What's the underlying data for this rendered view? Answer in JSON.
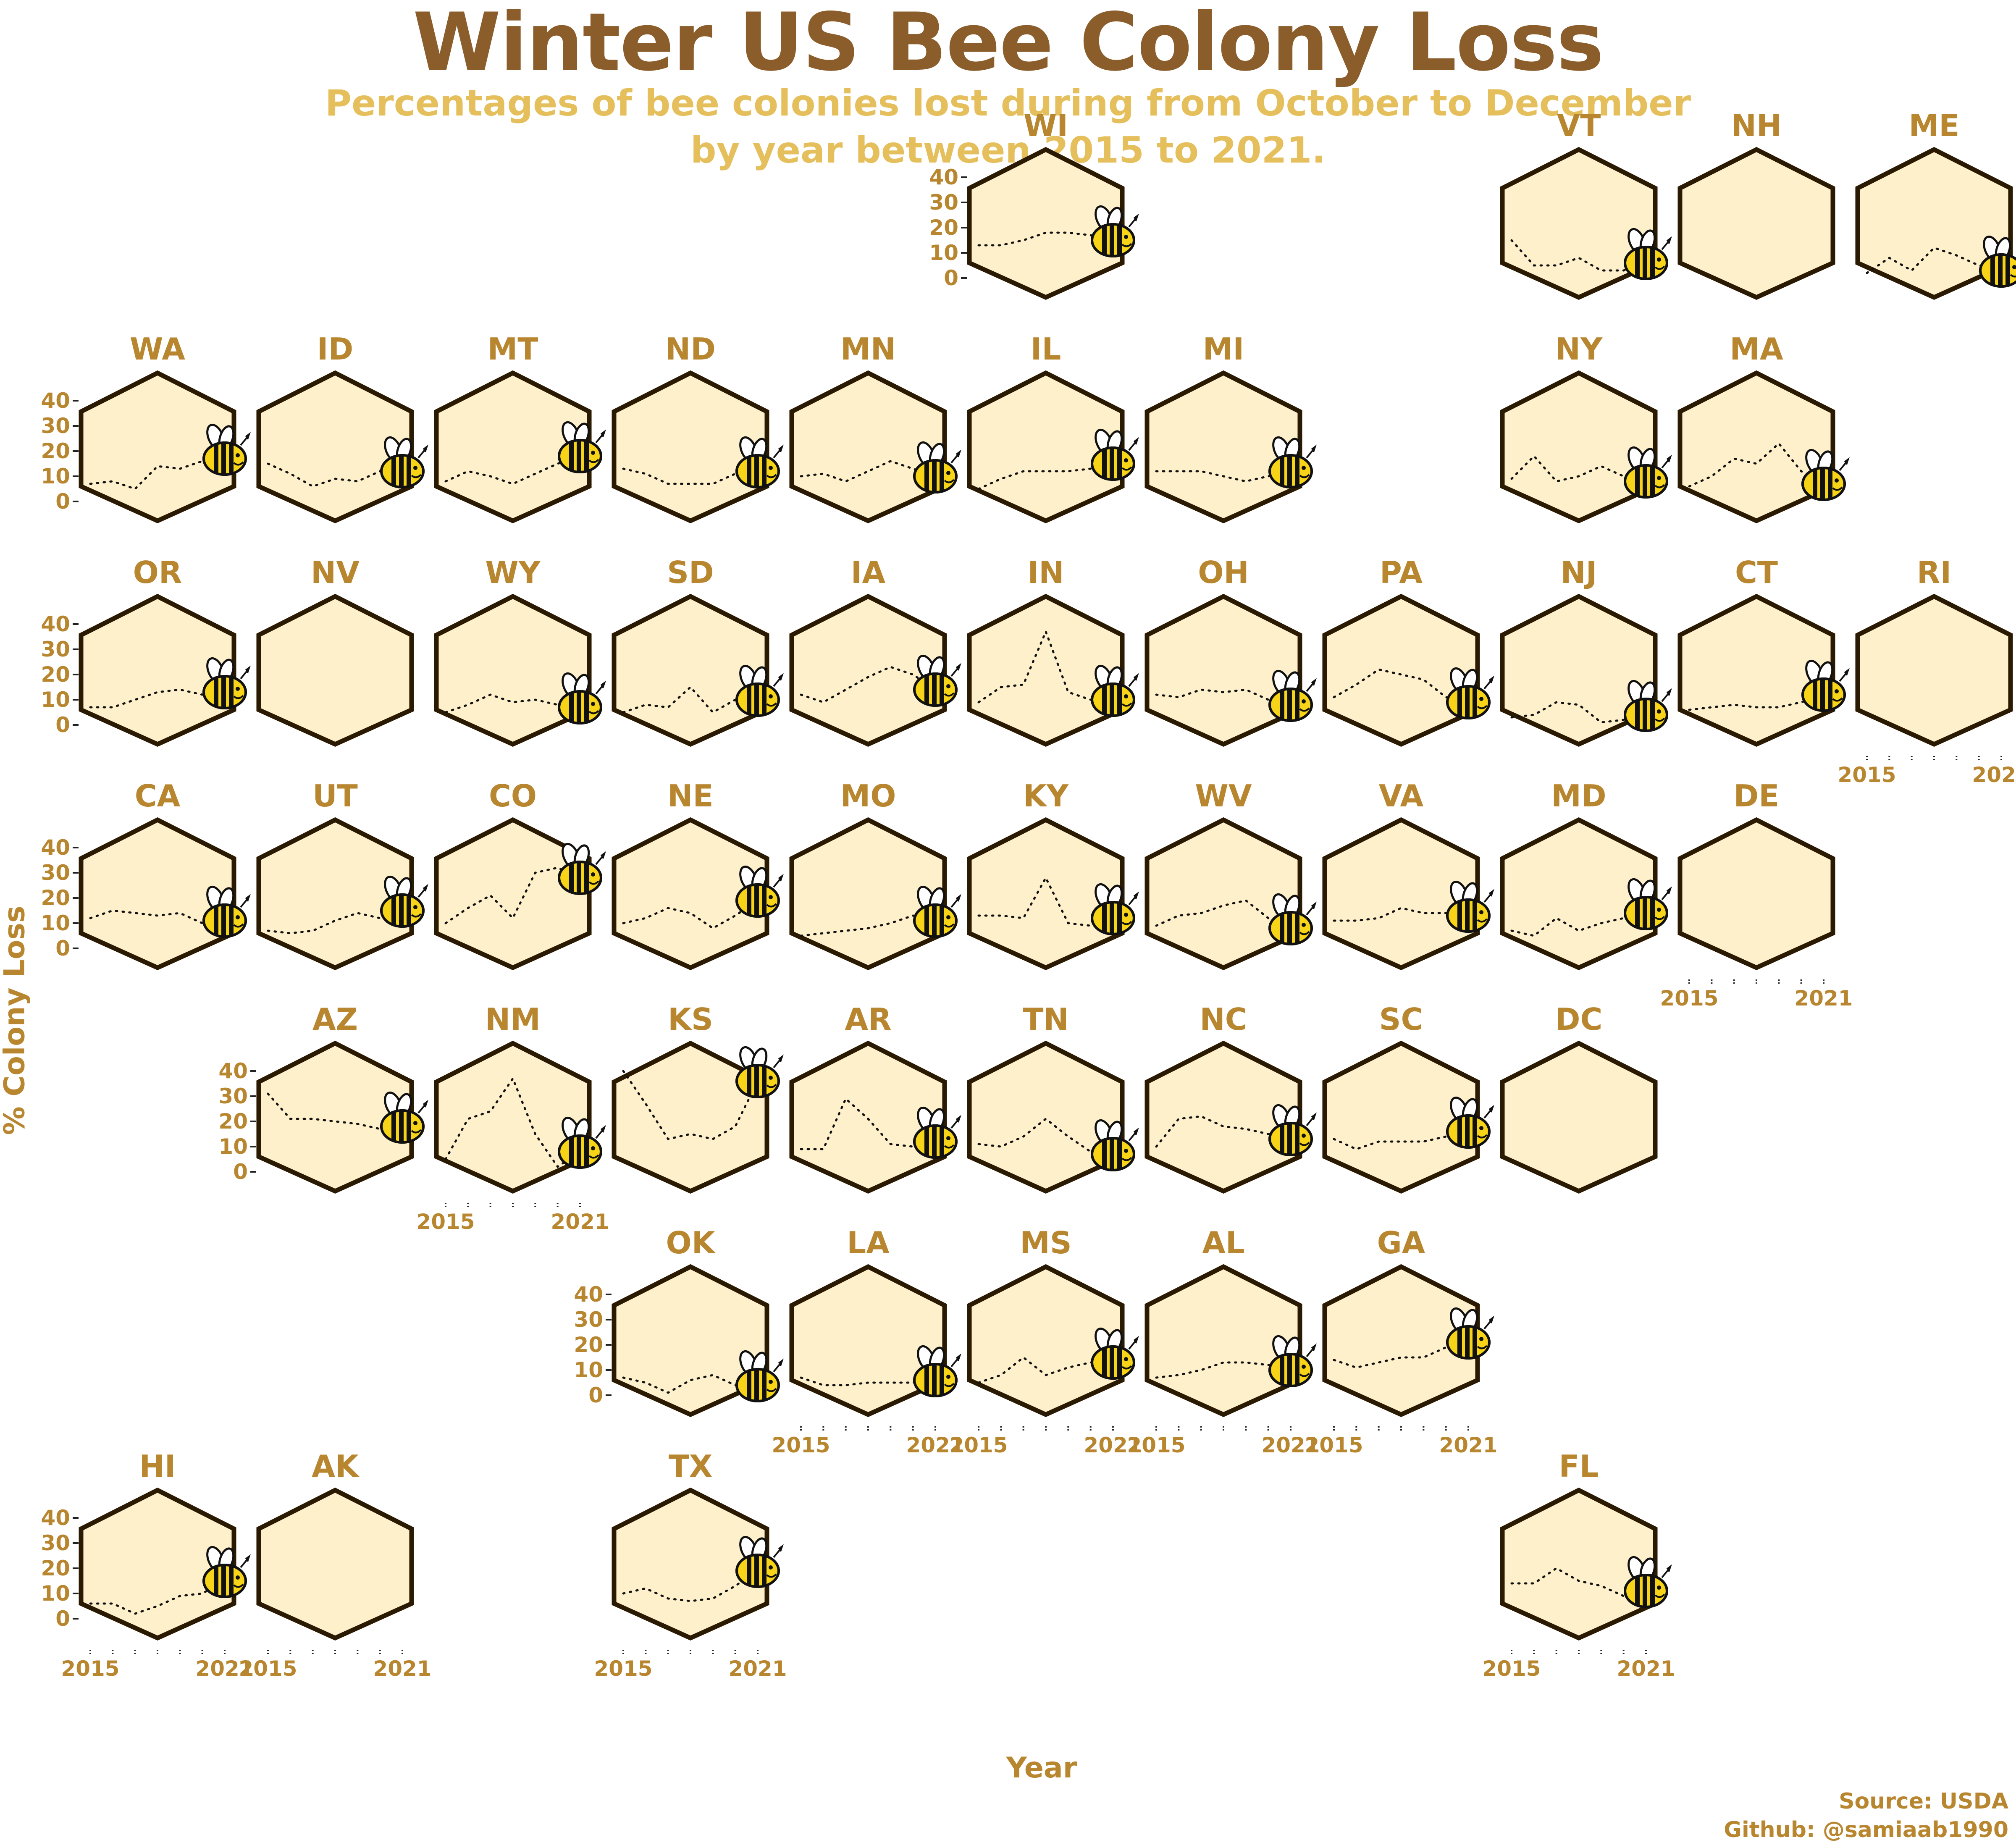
{
  "chart_data": {
    "type": "line",
    "title": "Winter US Bee Colony Loss",
    "subtitle": [
      "Percentages of bee colonies lost during from October to December",
      "by year between 2015 to 2021."
    ],
    "xlabel": "Year",
    "ylabel": "% Colony Loss",
    "x": [
      2015,
      2016,
      2017,
      2018,
      2019,
      2020,
      2021
    ],
    "x_tick_labels": [
      "2015",
      "2021"
    ],
    "y_ticks": [
      0,
      10,
      20,
      30,
      40
    ],
    "ylim": [
      0,
      40
    ],
    "source": [
      "Source: USDA",
      "Github: @samiaab1990"
    ],
    "states": [
      {
        "state": "WI",
        "values": [
          13,
          13,
          15,
          18,
          18,
          17,
          15
        ]
      },
      {
        "state": "VT",
        "values": [
          15,
          5,
          5,
          8,
          3,
          3,
          6
        ]
      },
      {
        "state": "NH",
        "values": []
      },
      {
        "state": "ME",
        "values": [
          2,
          8,
          3,
          12,
          9,
          5,
          3
        ]
      },
      {
        "state": "WA",
        "values": [
          7,
          8,
          5,
          14,
          13,
          16,
          17
        ]
      },
      {
        "state": "ID",
        "values": [
          15,
          11,
          6,
          9,
          8,
          12,
          12
        ]
      },
      {
        "state": "MT",
        "values": [
          8,
          12,
          10,
          7,
          11,
          15,
          18
        ]
      },
      {
        "state": "ND",
        "values": [
          13,
          11,
          7,
          7,
          7,
          11,
          12
        ]
      },
      {
        "state": "MN",
        "values": [
          10,
          11,
          8,
          12,
          16,
          13,
          10
        ]
      },
      {
        "state": "IL",
        "values": [
          5,
          9,
          12,
          12,
          12,
          13,
          15
        ]
      },
      {
        "state": "MI",
        "values": [
          12,
          12,
          12,
          10,
          8,
          10,
          12
        ]
      },
      {
        "state": "NY",
        "values": [
          9,
          18,
          8,
          10,
          14,
          10,
          8
        ]
      },
      {
        "state": "MA",
        "values": [
          6,
          10,
          17,
          15,
          23,
          12,
          7
        ]
      },
      {
        "state": "OR",
        "values": [
          7,
          7,
          10,
          13,
          14,
          12,
          13
        ]
      },
      {
        "state": "NV",
        "values": []
      },
      {
        "state": "WY",
        "values": [
          5,
          8,
          12,
          9,
          10,
          8,
          7
        ]
      },
      {
        "state": "SD",
        "values": [
          5,
          8,
          7,
          15,
          5,
          10,
          10
        ]
      },
      {
        "state": "IA",
        "values": [
          12,
          9,
          14,
          19,
          23,
          20,
          14
        ]
      },
      {
        "state": "IN",
        "values": [
          9,
          15,
          16,
          37,
          13,
          10,
          10
        ]
      },
      {
        "state": "OH",
        "values": [
          12,
          11,
          14,
          13,
          14,
          10,
          8
        ]
      },
      {
        "state": "PA",
        "values": [
          11,
          16,
          22,
          20,
          18,
          11,
          9
        ]
      },
      {
        "state": "NJ",
        "values": [
          3,
          4,
          9,
          8,
          1,
          2,
          4
        ]
      },
      {
        "state": "CT",
        "values": [
          6,
          7,
          8,
          7,
          7,
          9,
          12
        ]
      },
      {
        "state": "RI",
        "values": []
      },
      {
        "state": "CA",
        "values": [
          12,
          15,
          14,
          13,
          14,
          10,
          11
        ]
      },
      {
        "state": "UT",
        "values": [
          7,
          6,
          7,
          11,
          14,
          12,
          15
        ]
      },
      {
        "state": "CO",
        "values": [
          10,
          16,
          21,
          12,
          30,
          32,
          28
        ]
      },
      {
        "state": "NE",
        "values": [
          10,
          12,
          16,
          14,
          8,
          13,
          19
        ]
      },
      {
        "state": "MO",
        "values": [
          5,
          6,
          7,
          8,
          10,
          13,
          11
        ]
      },
      {
        "state": "KY",
        "values": [
          13,
          13,
          12,
          28,
          10,
          9,
          12
        ]
      },
      {
        "state": "WV",
        "values": [
          9,
          13,
          14,
          17,
          19,
          12,
          8
        ]
      },
      {
        "state": "VA",
        "values": [
          11,
          11,
          12,
          16,
          14,
          14,
          13
        ]
      },
      {
        "state": "MD",
        "values": [
          7,
          5,
          12,
          7,
          10,
          12,
          14
        ]
      },
      {
        "state": "DE",
        "values": []
      },
      {
        "state": "AZ",
        "values": [
          31,
          21,
          21,
          20,
          19,
          17,
          18
        ]
      },
      {
        "state": "NM",
        "values": [
          5,
          21,
          24,
          37,
          15,
          2,
          8
        ]
      },
      {
        "state": "KS",
        "values": [
          40,
          27,
          13,
          15,
          13,
          18,
          36
        ]
      },
      {
        "state": "AR",
        "values": [
          9,
          9,
          29,
          21,
          11,
          10,
          12
        ]
      },
      {
        "state": "TN",
        "values": [
          11,
          10,
          14,
          21,
          14,
          8,
          7
        ]
      },
      {
        "state": "NC",
        "values": [
          10,
          21,
          22,
          18,
          17,
          15,
          13
        ]
      },
      {
        "state": "SC",
        "values": [
          13,
          9,
          12,
          12,
          12,
          14,
          16
        ]
      },
      {
        "state": "DC",
        "values": []
      },
      {
        "state": "OK",
        "values": [
          7,
          5,
          1,
          6,
          8,
          4,
          4
        ]
      },
      {
        "state": "LA",
        "values": [
          7,
          4,
          4,
          5,
          5,
          5,
          6
        ]
      },
      {
        "state": "MS",
        "values": [
          5,
          8,
          15,
          8,
          11,
          13,
          13
        ]
      },
      {
        "state": "AL",
        "values": [
          7,
          8,
          10,
          13,
          13,
          12,
          10
        ]
      },
      {
        "state": "GA",
        "values": [
          14,
          11,
          13,
          15,
          15,
          19,
          21
        ]
      },
      {
        "state": "HI",
        "values": [
          6,
          6,
          2,
          5,
          9,
          10,
          15
        ]
      },
      {
        "state": "AK",
        "values": []
      },
      {
        "state": "TX",
        "values": [
          10,
          12,
          8,
          7,
          8,
          13,
          19
        ]
      },
      {
        "state": "FL",
        "values": [
          14,
          14,
          20,
          15,
          13,
          9,
          11
        ]
      }
    ]
  },
  "colors": {
    "hex_fill": "#fff0cc",
    "hex_stroke": "#2b1a02",
    "label_color": "#b8862f",
    "title_color": "#8a5d2b",
    "subtitle_color": "#e5bf5c",
    "bee_body": "#f7d417",
    "bee_stripe": "#111111"
  },
  "icons": {
    "marker": "bee-icon"
  }
}
